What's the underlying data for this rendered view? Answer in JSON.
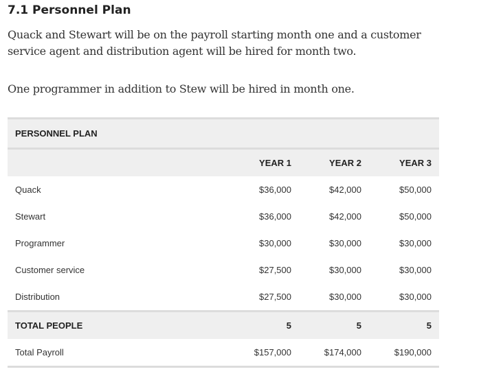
{
  "title": "7.1 Personnel Plan",
  "paragraphs": [
    "Quack and Stewart will be on the payroll starting month one and a customer service agent and distribution agent will be hired for month two.",
    "One programmer in addition to Stew will be hired in month one."
  ],
  "table": {
    "caption": "PERSONNEL PLAN",
    "columns": [
      "YEAR 1",
      "YEAR 2",
      "YEAR 3"
    ],
    "rows": [
      {
        "label": "Quack",
        "values": [
          "$36,000",
          "$42,000",
          "$50,000"
        ]
      },
      {
        "label": "Stewart",
        "values": [
          "$36,000",
          "$42,000",
          "$50,000"
        ]
      },
      {
        "label": "Programmer",
        "values": [
          "$30,000",
          "$30,000",
          "$30,000"
        ]
      },
      {
        "label": "Customer service",
        "values": [
          "$27,500",
          "$30,000",
          "$30,000"
        ]
      },
      {
        "label": "Distribution",
        "values": [
          "$27,500",
          "$30,000",
          "$30,000"
        ]
      }
    ],
    "total_people": {
      "label": "TOTAL PEOPLE",
      "values": [
        "5",
        "5",
        "5"
      ]
    },
    "total_payroll": {
      "label": "Total Payroll",
      "values": [
        "$157,000",
        "$174,000",
        "$190,000"
      ]
    }
  }
}
